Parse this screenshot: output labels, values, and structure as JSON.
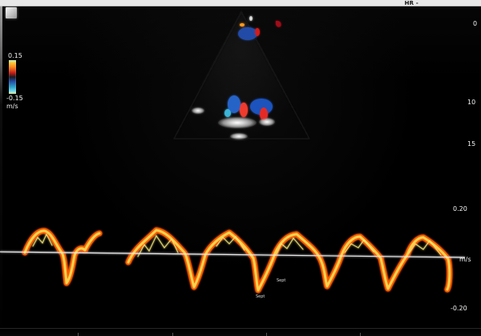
{
  "header": {
    "hr_label": "HR -"
  },
  "color_scale": {
    "top": "0.15",
    "bottom": "-0.15",
    "unit": "m/s",
    "colors": [
      "#f7e24a",
      "#ff8d1c",
      "#c11818",
      "#1b1a1d",
      "#244ca8",
      "#2ea7c8",
      "#98f0ff"
    ]
  },
  "depth_scale": {
    "d0": "0",
    "d10": "10",
    "d15": "15"
  },
  "velocity_scale": {
    "positive": "0.20",
    "negative": "-0.20",
    "unit": "m/s"
  },
  "markers": {
    "a": "Sept",
    "b": "Sept"
  },
  "colors": {
    "background": "#000000",
    "trace_core": "#ffd34d",
    "trace_edge": "#ff5a00",
    "baseline": "#f2f2f2"
  }
}
